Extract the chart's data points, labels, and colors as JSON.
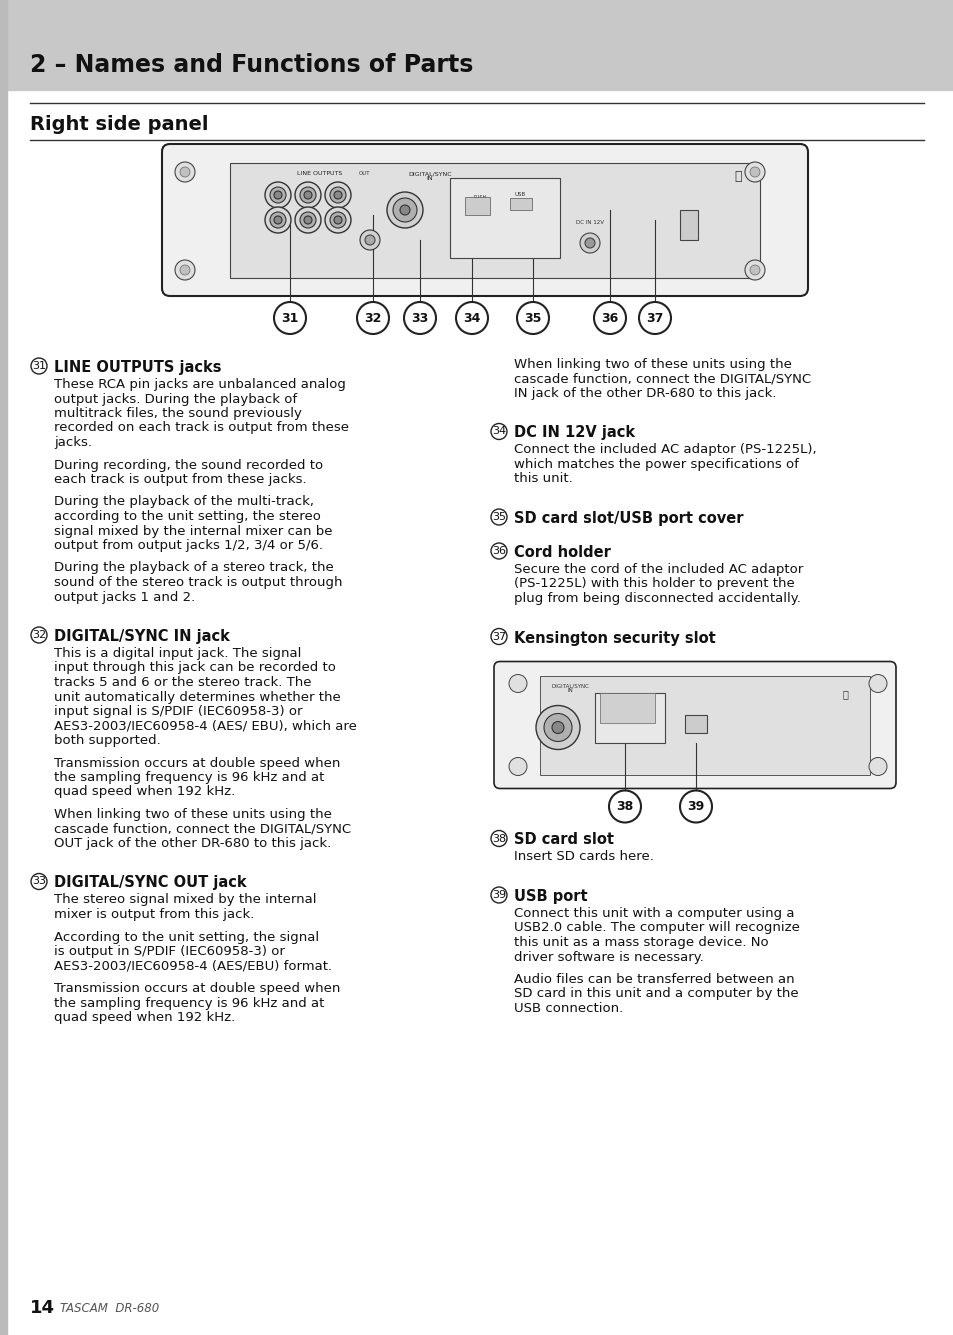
{
  "bg_color": "#ffffff",
  "header_bg": "#c8c8c8",
  "header_text": "2 – Names and Functions of Parts",
  "section_title": "Right side panel",
  "body_text_color": "#1a1a1a",
  "heading_color": "#000000",
  "left_items": [
    {
      "num": "31",
      "title": "LINE OUTPUTS jacks",
      "paragraphs": [
        "These RCA pin jacks are unbalanced analog output jacks. During the playback of multitrack files, the sound previously recorded on each track is output from these jacks.",
        "During recording, the sound recorded to each track is output from these jacks.",
        "During the playback of the multi-track, according to the unit setting, the stereo signal mixed by the internal mixer can be output from output jacks 1/2, 3/4 or 5/6.",
        "During the playback of a stereo track, the sound of the stereo track is output through output jacks 1 and 2."
      ]
    },
    {
      "num": "32",
      "title": "DIGITAL/SYNC IN jack",
      "paragraphs": [
        "This is a digital input jack. The signal input through this jack can be recorded to tracks 5 and 6 or the stereo track. The unit automatically determines whether the input signal is S/PDIF (IEC60958-3) or AES3-2003/IEC60958-4 (AES/ EBU), which are both supported.",
        "Transmission occurs at double speed when the sampling frequency is 96 kHz and at quad speed when 192 kHz.",
        "When linking two of these units using the cascade function, connect the DIGITAL/SYNC OUT jack of the other DR-680 to this jack."
      ]
    },
    {
      "num": "33",
      "title": "DIGITAL/SYNC OUT jack",
      "paragraphs": [
        "The stereo signal mixed by the internal mixer is output from this jack.",
        "According to the unit setting, the signal is output in S/PDIF (IEC60958-3) or AES3-2003/IEC60958-4 (AES/EBU) format.",
        "Transmission occurs at double speed when the sampling frequency is 96 kHz and at quad speed when 192 kHz."
      ]
    }
  ],
  "right_items": [
    {
      "num": "",
      "title": "",
      "paragraphs": [
        "When linking two of these units using the cascade function, connect the DIGITAL/SYNC IN jack of the other DR-680 to this jack."
      ]
    },
    {
      "num": "34",
      "title": "DC IN 12V jack",
      "paragraphs": [
        "Connect the included AC adaptor (PS-1225L), which matches the power specifications of this unit."
      ]
    },
    {
      "num": "35",
      "title": "SD card slot/USB port cover",
      "paragraphs": []
    },
    {
      "num": "36",
      "title": "Cord holder",
      "paragraphs": [
        "Secure the cord of the included AC adaptor (PS-1225L) with this holder to prevent the plug from being disconnected accidentally."
      ]
    },
    {
      "num": "37",
      "title": "Kensington security slot",
      "paragraphs": []
    },
    {
      "num": "38",
      "title": "SD card slot",
      "paragraphs": [
        "Insert SD cards here."
      ]
    },
    {
      "num": "39",
      "title": "USB port",
      "paragraphs": [
        "Connect this unit with a computer using a USB2.0 cable. The computer will recognize this unit as a mass storage device. No driver software is necessary.",
        "Audio files can be transferred between an SD card in this unit and a computer by the USB connection."
      ]
    }
  ]
}
